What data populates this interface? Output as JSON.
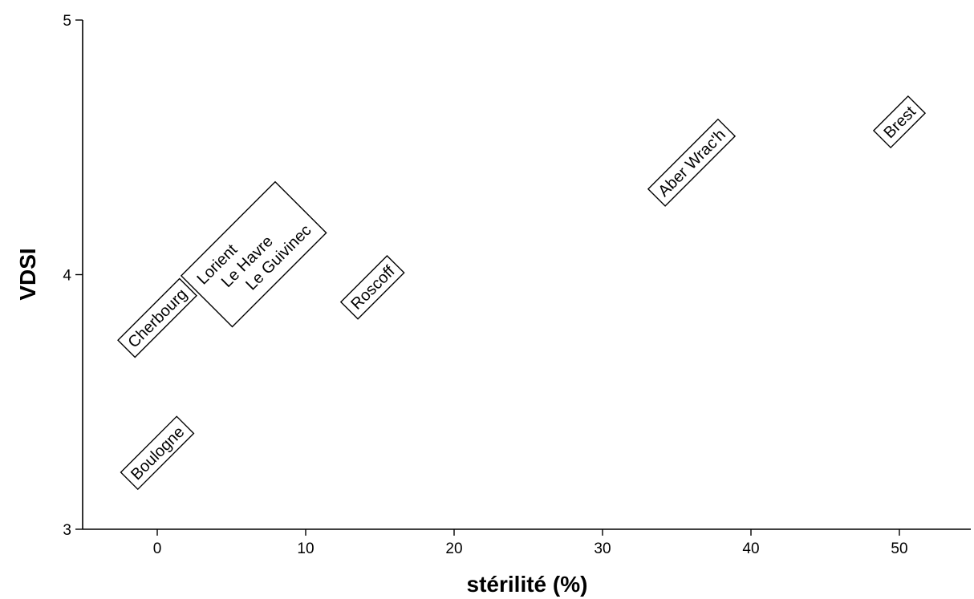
{
  "chart_data": {
    "type": "scatter",
    "title": "",
    "xlabel": "stérilité (%)",
    "ylabel": "VDSI",
    "xlim": [
      -5,
      55
    ],
    "ylim": [
      3,
      5
    ],
    "x_ticks": [
      0,
      10,
      20,
      30,
      40,
      50
    ],
    "y_ticks": [
      3,
      4,
      5
    ],
    "grid": false,
    "points": [
      {
        "label": "Boulogne",
        "x": 0,
        "y": 3.3
      },
      {
        "label": "Cherbourg",
        "x": 0,
        "y": 3.83
      },
      {
        "label": "Lorient",
        "x": 5.5,
        "y": 4.08,
        "group": 1
      },
      {
        "label": "Le Havre",
        "x": 6.5,
        "y": 4.08,
        "group": 1
      },
      {
        "label": "Le Guivinec",
        "x": 7.5,
        "y": 4.08,
        "group": 1
      },
      {
        "label": "Roscoff",
        "x": 14.5,
        "y": 3.95
      },
      {
        "label": "Aber Wrac'h",
        "x": 36,
        "y": 4.44
      },
      {
        "label": "Brest",
        "x": 50,
        "y": 4.6
      }
    ]
  }
}
